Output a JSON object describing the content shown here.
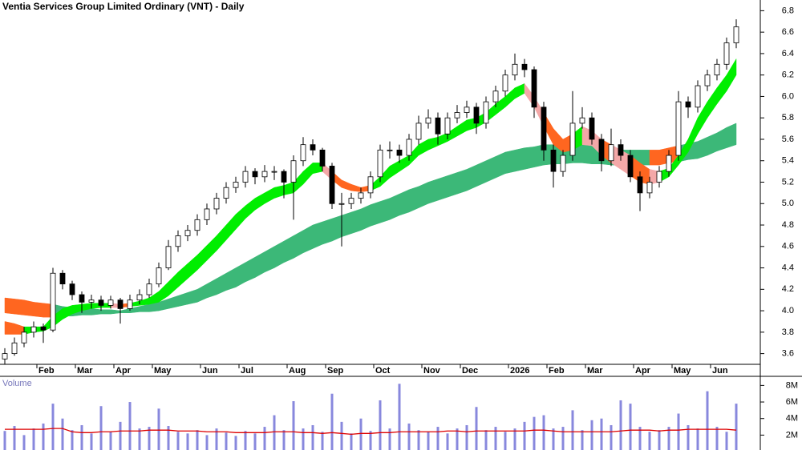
{
  "chart_data": [
    {
      "type": "candlestick",
      "title": "Ventia Services Group Limited Ordinary (VNT) - Daily",
      "categories": [
        null,
        null,
        null,
        null,
        "Feb",
        null,
        null,
        null,
        "Mar",
        null,
        null,
        null,
        "Apr",
        null,
        null,
        null,
        "May",
        null,
        null,
        null,
        null,
        "Jun",
        null,
        null,
        null,
        "Jul",
        null,
        null,
        null,
        null,
        "Aug",
        null,
        null,
        null,
        "Sep",
        null,
        null,
        null,
        null,
        "Oct",
        null,
        null,
        null,
        null,
        "Nov",
        null,
        null,
        null,
        "Dec",
        null,
        null,
        null,
        null,
        "2026",
        null,
        null,
        null,
        "Feb",
        null,
        null,
        null,
        "Mar",
        null,
        null,
        null,
        null,
        "Apr",
        null,
        null,
        null,
        "May",
        null,
        null,
        null,
        "Jun",
        null,
        null
      ],
      "ohlc": [
        [
          3.55,
          3.65,
          3.5,
          3.6
        ],
        [
          3.6,
          3.75,
          3.58,
          3.7
        ],
        [
          3.7,
          3.85,
          3.66,
          3.8
        ],
        [
          3.8,
          3.9,
          3.75,
          3.85
        ],
        [
          3.85,
          3.88,
          3.7,
          3.82
        ],
        [
          3.82,
          4.4,
          3.8,
          4.35
        ],
        [
          4.35,
          4.38,
          4.2,
          4.25
        ],
        [
          4.25,
          4.28,
          4.1,
          4.15
        ],
        [
          4.15,
          4.18,
          3.98,
          4.08
        ],
        [
          4.08,
          4.15,
          4.02,
          4.1
        ],
        [
          4.1,
          4.14,
          4.0,
          4.05
        ],
        [
          4.05,
          4.14,
          4.02,
          4.1
        ],
        [
          4.1,
          4.12,
          3.88,
          4.02
        ],
        [
          4.02,
          4.15,
          4.0,
          4.1
        ],
        [
          4.1,
          4.2,
          4.06,
          4.15
        ],
        [
          4.15,
          4.3,
          4.12,
          4.25
        ],
        [
          4.25,
          4.45,
          4.22,
          4.4
        ],
        [
          4.4,
          4.66,
          4.38,
          4.6
        ],
        [
          4.6,
          4.75,
          4.55,
          4.7
        ],
        [
          4.7,
          4.8,
          4.65,
          4.75
        ],
        [
          4.75,
          4.9,
          4.7,
          4.85
        ],
        [
          4.85,
          5.0,
          4.8,
          4.95
        ],
        [
          4.95,
          5.1,
          4.9,
          5.05
        ],
        [
          5.05,
          5.2,
          5.0,
          5.15
        ],
        [
          5.15,
          5.25,
          5.1,
          5.2
        ],
        [
          5.2,
          5.35,
          5.15,
          5.3
        ],
        [
          5.3,
          5.33,
          5.18,
          5.25
        ],
        [
          5.25,
          5.36,
          5.2,
          5.3
        ],
        [
          5.3,
          5.35,
          5.22,
          5.3
        ],
        [
          5.3,
          5.32,
          5.05,
          5.2
        ],
        [
          5.2,
          5.45,
          4.85,
          5.4
        ],
        [
          5.4,
          5.62,
          5.35,
          5.55
        ],
        [
          5.55,
          5.6,
          5.45,
          5.5
        ],
        [
          5.5,
          5.52,
          5.3,
          5.35
        ],
        [
          5.35,
          5.38,
          4.95,
          5.0
        ],
        [
          5.0,
          5.1,
          4.6,
          5.0
        ],
        [
          5.0,
          5.1,
          4.95,
          5.05
        ],
        [
          5.05,
          5.15,
          5.0,
          5.1
        ],
        [
          5.1,
          5.3,
          5.05,
          5.25
        ],
        [
          5.25,
          5.55,
          5.2,
          5.5
        ],
        [
          5.5,
          5.58,
          5.42,
          5.5
        ],
        [
          5.5,
          5.55,
          5.38,
          5.45
        ],
        [
          5.45,
          5.65,
          5.4,
          5.6
        ],
        [
          5.6,
          5.82,
          5.55,
          5.75
        ],
        [
          5.75,
          5.88,
          5.7,
          5.8
        ],
        [
          5.8,
          5.85,
          5.55,
          5.65
        ],
        [
          5.65,
          5.85,
          5.6,
          5.8
        ],
        [
          5.8,
          5.92,
          5.75,
          5.85
        ],
        [
          5.85,
          5.96,
          5.8,
          5.9
        ],
        [
          5.9,
          5.94,
          5.65,
          5.75
        ],
        [
          5.75,
          6.0,
          5.7,
          5.95
        ],
        [
          5.95,
          6.1,
          5.9,
          6.05
        ],
        [
          6.05,
          6.25,
          6.0,
          6.2
        ],
        [
          6.2,
          6.4,
          6.15,
          6.3
        ],
        [
          6.3,
          6.35,
          6.18,
          6.25
        ],
        [
          6.25,
          6.28,
          5.8,
          5.9
        ],
        [
          5.9,
          5.95,
          5.4,
          5.5
        ],
        [
          5.5,
          5.55,
          5.15,
          5.3
        ],
        [
          5.3,
          5.5,
          5.25,
          5.45
        ],
        [
          5.45,
          6.05,
          5.4,
          5.75
        ],
        [
          5.75,
          5.9,
          5.7,
          5.8
        ],
        [
          5.8,
          5.85,
          5.55,
          5.6
        ],
        [
          5.6,
          5.65,
          5.3,
          5.4
        ],
        [
          5.4,
          5.7,
          5.35,
          5.55
        ],
        [
          5.55,
          5.6,
          5.4,
          5.45
        ],
        [
          5.45,
          5.5,
          5.2,
          5.25
        ],
        [
          5.25,
          5.3,
          4.93,
          5.1
        ],
        [
          5.1,
          5.25,
          5.05,
          5.2
        ],
        [
          5.2,
          5.35,
          5.15,
          5.3
        ],
        [
          5.3,
          5.5,
          5.25,
          5.45
        ],
        [
          5.45,
          6.05,
          5.4,
          5.95
        ],
        [
          5.95,
          6.0,
          5.8,
          5.9
        ],
        [
          5.9,
          6.15,
          5.85,
          6.1
        ],
        [
          6.1,
          6.25,
          6.05,
          6.2
        ],
        [
          6.2,
          6.35,
          6.15,
          6.3
        ],
        [
          6.3,
          6.55,
          6.25,
          6.5
        ],
        [
          6.5,
          6.72,
          6.45,
          6.65
        ]
      ],
      "up_color": "#ffffff",
      "down_color": "#000000",
      "bands": [
        {
          "color": "#00ee00",
          "color_falling": "#f4a8a8",
          "color_below": "#ff6620",
          "upper": [
            3.9,
            3.88,
            3.85,
            3.85,
            3.85,
            3.95,
            4.02,
            4.05,
            4.06,
            4.07,
            4.07,
            4.07,
            4.06,
            4.07,
            4.09,
            4.12,
            4.18,
            4.27,
            4.36,
            4.44,
            4.52,
            4.61,
            4.7,
            4.8,
            4.9,
            4.98,
            5.05,
            5.1,
            5.15,
            5.17,
            5.2,
            5.3,
            5.38,
            5.38,
            5.3,
            5.22,
            5.18,
            5.15,
            5.17,
            5.25,
            5.35,
            5.4,
            5.45,
            5.55,
            5.6,
            5.62,
            5.66,
            5.72,
            5.78,
            5.8,
            5.85,
            5.93,
            6.0,
            6.08,
            6.12,
            6.0,
            5.85,
            5.7,
            5.6,
            5.65,
            5.72,
            5.68,
            5.6,
            5.55,
            5.5,
            5.45,
            5.38,
            5.32,
            5.3,
            5.33,
            5.45,
            5.6,
            5.8,
            5.95,
            6.08,
            6.2,
            6.35
          ],
          "lower": [
            3.78,
            3.78,
            3.78,
            3.8,
            3.81,
            3.85,
            3.92,
            3.97,
            4.0,
            4.02,
            4.03,
            4.03,
            4.03,
            4.04,
            4.05,
            4.06,
            4.08,
            4.14,
            4.22,
            4.3,
            4.38,
            4.47,
            4.56,
            4.66,
            4.76,
            4.86,
            4.94,
            5.0,
            5.05,
            5.08,
            5.1,
            5.18,
            5.28,
            5.3,
            5.22,
            5.15,
            5.12,
            5.11,
            5.12,
            5.16,
            5.24,
            5.3,
            5.36,
            5.45,
            5.5,
            5.54,
            5.58,
            5.63,
            5.68,
            5.71,
            5.76,
            5.83,
            5.9,
            5.98,
            6.03,
            5.9,
            5.72,
            5.55,
            5.48,
            5.5,
            5.55,
            5.54,
            5.45,
            5.38,
            5.32,
            5.26,
            5.2,
            5.18,
            5.2,
            5.25,
            5.36,
            5.48,
            5.65,
            5.8,
            5.93,
            6.05,
            6.2
          ]
        },
        {
          "color": "#3cb878",
          "color_falling": "#3cb878",
          "color_below": "#ff6620",
          "upper": [
            4.12,
            4.11,
            4.1,
            4.08,
            4.07,
            4.06,
            4.04,
            4.03,
            4.02,
            4.02,
            4.01,
            4.01,
            4.0,
            4.02,
            4.04,
            4.06,
            4.08,
            4.11,
            4.14,
            4.17,
            4.2,
            4.25,
            4.3,
            4.35,
            4.4,
            4.45,
            4.5,
            4.55,
            4.6,
            4.65,
            4.7,
            4.75,
            4.8,
            4.83,
            4.86,
            4.89,
            4.92,
            4.95,
            4.99,
            5.02,
            5.05,
            5.09,
            5.13,
            5.16,
            5.2,
            5.23,
            5.26,
            5.29,
            5.32,
            5.36,
            5.4,
            5.44,
            5.48,
            5.5,
            5.52,
            5.53,
            5.55,
            5.55,
            5.55,
            5.55,
            5.55,
            5.54,
            5.53,
            5.51,
            5.5,
            5.5,
            5.5,
            5.5,
            5.5,
            5.52,
            5.54,
            5.56,
            5.58,
            5.62,
            5.66,
            5.71,
            5.75
          ],
          "lower": [
            3.98,
            3.97,
            3.96,
            3.95,
            3.94,
            3.94,
            3.95,
            3.95,
            3.96,
            3.96,
            3.97,
            3.97,
            3.98,
            3.98,
            3.99,
            3.99,
            4.0,
            4.02,
            4.04,
            4.06,
            4.08,
            4.12,
            4.15,
            4.19,
            4.22,
            4.27,
            4.31,
            4.36,
            4.4,
            4.45,
            4.49,
            4.54,
            4.58,
            4.62,
            4.65,
            4.69,
            4.72,
            4.75,
            4.79,
            4.82,
            4.85,
            4.89,
            4.92,
            4.96,
            5.0,
            5.03,
            5.06,
            5.09,
            5.12,
            5.16,
            5.2,
            5.24,
            5.28,
            5.3,
            5.32,
            5.34,
            5.36,
            5.37,
            5.37,
            5.38,
            5.38,
            5.37,
            5.37,
            5.36,
            5.36,
            5.36,
            5.36,
            5.36,
            5.36,
            5.38,
            5.39,
            5.41,
            5.42,
            5.45,
            5.49,
            5.52,
            5.55
          ]
        }
      ],
      "ylim": [
        3.5,
        6.9
      ],
      "yticks": [
        3.6,
        3.8,
        {
          "value": 4,
          "label": "4.0"
        },
        4.2,
        4.4,
        4.6,
        4.8,
        {
          "value": 5,
          "label": "5.0"
        },
        5.2,
        5.4,
        5.6,
        5.8,
        {
          "value": 6,
          "label": "6.0"
        },
        6.2,
        6.4,
        6.6,
        6.8
      ]
    },
    {
      "type": "bar",
      "title": "Volume",
      "color": "#8888dd",
      "average_color": "#dd0000",
      "values": [
        2.5,
        3.1,
        2.0,
        2.8,
        3.4,
        5.8,
        4.0,
        2.6,
        3.2,
        2.2,
        5.5,
        2.4,
        3.6,
        6.0,
        2.8,
        3.0,
        5.2,
        3.1,
        2.4,
        2.2,
        2.6,
        2.0,
        2.8,
        2.3,
        1.9,
        2.5,
        2.2,
        3.0,
        4.4,
        2.6,
        6.1,
        2.8,
        3.2,
        2.4,
        7.0,
        3.6,
        2.2,
        4.0,
        2.5,
        6.2,
        2.8,
        8.2,
        3.4,
        2.6,
        2.4,
        3.0,
        2.2,
        2.8,
        3.2,
        5.4,
        2.6,
        3.0,
        2.4,
        2.8,
        3.6,
        4.2,
        4.4,
        2.8,
        3.0,
        5.0,
        2.6,
        3.8,
        4.0,
        3.2,
        6.2,
        5.8,
        3.0,
        2.4,
        2.6,
        3.0,
        4.6,
        3.2,
        2.8,
        7.3,
        3.0,
        2.4,
        5.8
      ],
      "average": [
        2.7,
        2.7,
        2.7,
        2.7,
        2.7,
        2.8,
        2.8,
        2.4,
        2.3,
        2.3,
        2.4,
        2.4,
        2.5,
        2.5,
        2.5,
        2.6,
        2.6,
        2.6,
        2.5,
        2.5,
        2.5,
        2.4,
        2.4,
        2.4,
        2.3,
        2.3,
        2.3,
        2.3,
        2.4,
        2.4,
        2.4,
        2.3,
        2.3,
        2.2,
        2.3,
        2.2,
        2.1,
        2.2,
        2.2,
        2.3,
        2.3,
        2.4,
        2.4,
        2.4,
        2.4,
        2.4,
        2.5,
        2.5,
        2.4,
        2.5,
        2.5,
        2.5,
        2.5,
        2.5,
        2.5,
        2.6,
        2.6,
        2.5,
        2.4,
        2.4,
        2.4,
        2.4,
        2.4,
        2.4,
        2.5,
        2.6,
        2.6,
        2.6,
        2.5,
        2.6,
        2.6,
        2.7,
        2.7,
        2.7,
        2.7,
        2.7,
        2.6
      ],
      "ylim": [
        0.2,
        9.1
      ],
      "yticks": [
        {
          "value": 2,
          "label": "2M"
        },
        {
          "value": 4,
          "label": "4M"
        },
        {
          "value": 6,
          "label": "6M"
        },
        {
          "value": 8,
          "label": "8M"
        }
      ]
    }
  ]
}
